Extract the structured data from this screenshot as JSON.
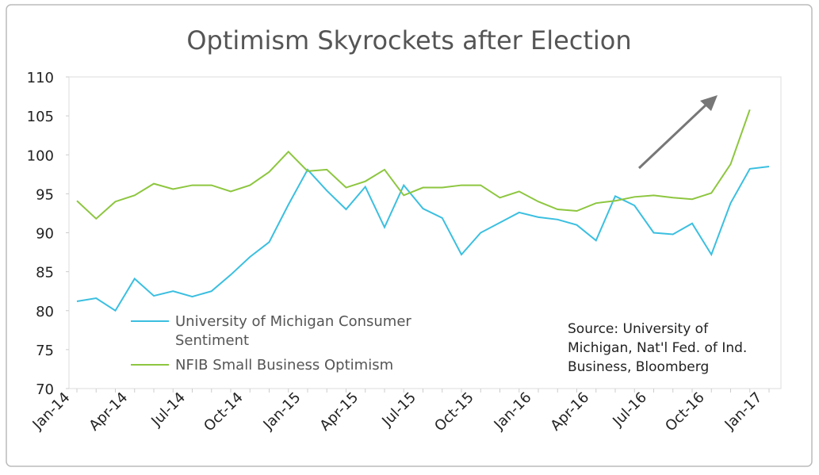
{
  "chart_data": {
    "type": "line",
    "title": "Optimism Skyrockets after Election",
    "annotation": "Source: University of Michigan, Nat'l Fed. of Ind. Business, Bloomberg",
    "categories": [
      "Jan-14",
      null,
      null,
      "Apr-14",
      null,
      null,
      "Jul-14",
      null,
      null,
      "Oct-14",
      null,
      null,
      "Jan-15",
      null,
      null,
      "Apr-15",
      null,
      null,
      "Jul-15",
      null,
      null,
      "Oct-15",
      null,
      null,
      "Jan-16",
      null,
      null,
      "Apr-16",
      null,
      null,
      "Jul-16",
      null,
      null,
      "Oct-16",
      null,
      null,
      "Jan-17"
    ],
    "series": [
      {
        "name": "University of Michigan Consumer Sentiment",
        "color": "#3bbfe0",
        "values": [
          81.2,
          81.6,
          80.0,
          84.1,
          81.9,
          82.5,
          81.8,
          82.5,
          84.6,
          86.9,
          88.8,
          93.6,
          98.1,
          95.4,
          93.0,
          95.9,
          90.7,
          96.1,
          93.1,
          91.9,
          87.2,
          90.0,
          91.3,
          92.6,
          92.0,
          91.7,
          91.0,
          89.0,
          94.7,
          93.5,
          90.0,
          89.8,
          91.2,
          87.2,
          93.8,
          98.2,
          98.5
        ]
      },
      {
        "name": "NFIB Small Business Optimism",
        "color": "#8dc63f",
        "values": [
          94.1,
          91.8,
          94.0,
          94.8,
          96.3,
          95.6,
          96.1,
          96.1,
          95.3,
          96.1,
          97.8,
          100.4,
          97.9,
          98.1,
          95.8,
          96.6,
          98.1,
          94.8,
          95.8,
          95.8,
          96.1,
          96.1,
          94.5,
          95.3,
          94.0,
          93.0,
          92.8,
          93.8,
          94.1,
          94.6,
          94.8,
          94.5,
          94.3,
          95.1,
          98.8,
          105.8,
          null
        ]
      }
    ],
    "ylim": [
      70,
      110
    ],
    "yticks": [
      70,
      75,
      80,
      85,
      90,
      95,
      100,
      105,
      110
    ]
  }
}
